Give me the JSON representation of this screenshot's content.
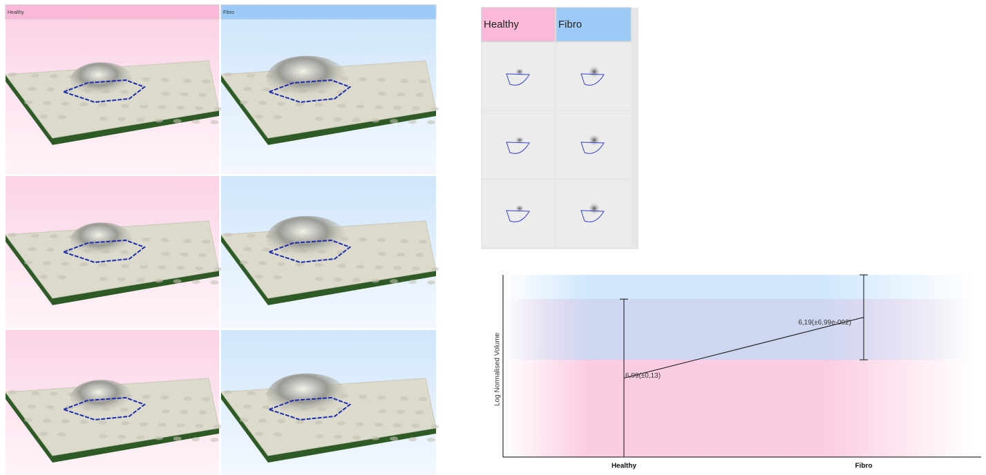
{
  "panels_3d": {
    "headers": [
      "Healthy",
      "Fibro"
    ]
  },
  "gel": {
    "headers": [
      "Healthy",
      "Fibro"
    ]
  },
  "chart_data": {
    "type": "errorbar",
    "y_label": "Log Normalised Volume",
    "categories": [
      "Healthy",
      "Fibro"
    ],
    "values": [
      6.09,
      6.19
    ],
    "errors": [
      0.13,
      0.0699
    ],
    "value_labels": [
      "6,09(±0,13)",
      "6,19(±6,99e-002)"
    ],
    "colors": [
      "#fbc6df",
      "#b9dcfa"
    ],
    "ylim": [
      5.96,
      6.26
    ]
  }
}
